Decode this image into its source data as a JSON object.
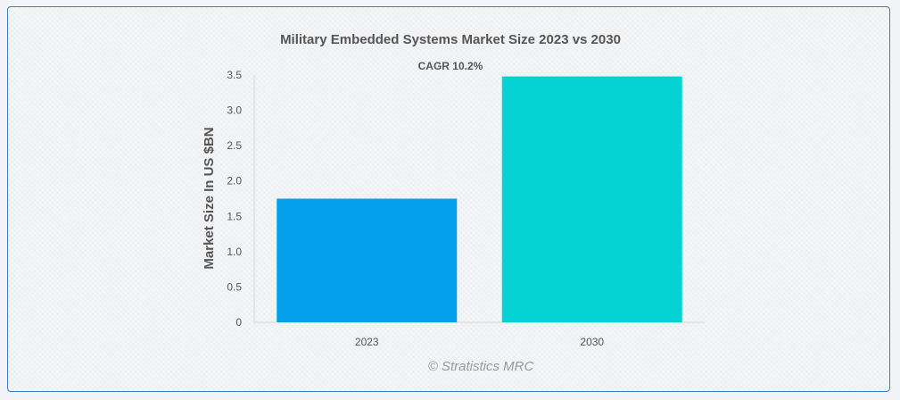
{
  "chart_data": {
    "type": "bar",
    "title": "Military Embedded Systems Market Size 2023 vs 2030",
    "annotation": "CAGR 10.2%",
    "xlabel": "",
    "ylabel": "Market Size In US $BN",
    "categories": [
      "2023",
      "2030"
    ],
    "values": [
      1.75,
      3.48
    ],
    "colors": [
      "#039fea",
      "#05d3d3"
    ],
    "ylim": [
      0,
      3.5
    ],
    "yticks": [
      "0",
      "0.5",
      "1.0",
      "1.5",
      "2.0",
      "2.5",
      "3.0",
      "3.5"
    ],
    "grid": false,
    "legend": "none"
  },
  "credit": "© Stratistics MRC"
}
